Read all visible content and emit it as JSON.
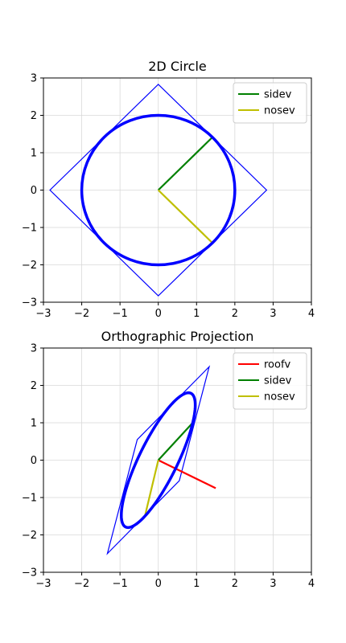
{
  "chart_data": [
    {
      "type": "line",
      "title": "2D Circle",
      "xlim": [
        -3,
        4
      ],
      "ylim": [
        -3,
        3
      ],
      "xticks": [
        "−3",
        "−2",
        "−1",
        "0",
        "1",
        "2",
        "3",
        "4"
      ],
      "yticks": [
        "−3",
        "−2",
        "−1",
        "0",
        "1",
        "2",
        "3"
      ],
      "grid": true,
      "legend_position": "top-right",
      "shapes": {
        "circle": {
          "center": [
            0,
            0
          ],
          "radius": 2,
          "color": "#0000ff"
        },
        "square": {
          "points": [
            [
              0,
              2.83
            ],
            [
              2.83,
              0
            ],
            [
              0,
              -2.83
            ],
            [
              -2.83,
              0
            ]
          ],
          "color": "#0000ff"
        }
      },
      "series": [
        {
          "name": "sidev",
          "color": "#008000",
          "x": [
            0,
            1.414
          ],
          "y": [
            0,
            1.414
          ]
        },
        {
          "name": "nosev",
          "color": "#bfbf00",
          "x": [
            0,
            1.414
          ],
          "y": [
            0,
            -1.414
          ]
        }
      ]
    },
    {
      "type": "line",
      "title": "Orthographic Projection",
      "xlim": [
        -3,
        4
      ],
      "ylim": [
        -3,
        3
      ],
      "xticks": [
        "−3",
        "−2",
        "−1",
        "0",
        "1",
        "2",
        "3",
        "4"
      ],
      "yticks": [
        "−3",
        "−2",
        "−1",
        "0",
        "1",
        "2",
        "3"
      ],
      "grid": true,
      "legend_position": "top-right",
      "shapes": {
        "ellipse": {
          "center": [
            0,
            0
          ],
          "axis_a": [
            0.9,
            1.0
          ],
          "axis_b": [
            -0.35,
            -1.5
          ],
          "color": "#0000ff"
        },
        "quad": {
          "points": [
            [
              1.33,
              2.5
            ],
            [
              0.55,
              -0.55
            ],
            [
              -1.33,
              -2.5
            ],
            [
              -0.55,
              0.55
            ]
          ],
          "color": "#0000ff"
        }
      },
      "series": [
        {
          "name": "roofv",
          "color": "#ff0000",
          "x": [
            0,
            1.5
          ],
          "y": [
            0,
            -0.75
          ]
        },
        {
          "name": "sidev",
          "color": "#008000",
          "x": [
            0,
            0.9
          ],
          "y": [
            0,
            1.0
          ]
        },
        {
          "name": "nosev",
          "color": "#bfbf00",
          "x": [
            0,
            -0.35
          ],
          "y": [
            0,
            -1.5
          ]
        }
      ]
    }
  ]
}
